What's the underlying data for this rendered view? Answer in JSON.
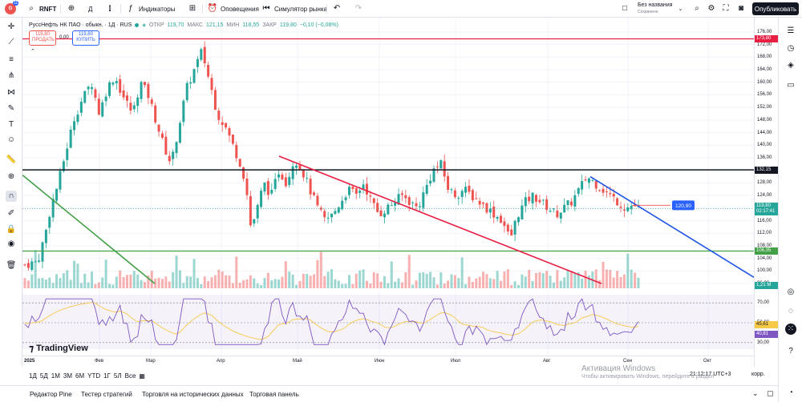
{
  "topbar": {
    "symbol": "RNFT",
    "interval": "Д",
    "indicators_label": "Индикаторы",
    "alerts_label": "Оповещения",
    "replay_label": "Симулятор рынка",
    "layout_name": "Без названия",
    "layout_status": "Сохранено",
    "publish_label": "Опубликовать",
    "avatar_badge": "11"
  },
  "legend": {
    "title": "РуссНефть НК ПАО · обыкн. · 1Д · RUS",
    "o_label": "ОТКР",
    "o": "119,70",
    "h_label": "МАКС",
    "h": "121,15",
    "l_label": "МИН",
    "l": "118,55",
    "c_label": "ЗАКР",
    "c": "119,80",
    "change": "−0,10 (−0,08%)"
  },
  "trade": {
    "sell_price": "119,80",
    "sell_label": "ПРОДАТЬ",
    "spread": "0,00",
    "buy_price": "119,80",
    "buy_label": "КУПИТЬ"
  },
  "price_axis": [
    "176,00",
    "172,00",
    "168,00",
    "164,00",
    "160,00",
    "156,00",
    "152,00",
    "148,00",
    "144,00",
    "140,00",
    "136,00",
    "132,00",
    "128,00",
    "124,00",
    "120,00",
    "116,00",
    "112,00",
    "108,00",
    "104,00",
    "100,00",
    "96,00"
  ],
  "rsi_axis": [
    "70,00",
    "50,00",
    "30,00"
  ],
  "price_tags": {
    "top_line": "173,80",
    "black_line": "132,15",
    "current": "119,80",
    "countdown": "02:17:41",
    "green_line": "106,35",
    "volume": "1,21 M",
    "rsi_ma": "45,61",
    "rsi": "40,81",
    "target": "120,90"
  },
  "time_axis": [
    "2025",
    "Фев",
    "Мар",
    "Апр",
    "Май",
    "Июн",
    "Июл",
    "Авг",
    "Сен",
    "Окт"
  ],
  "ranges": [
    "1Д",
    "5Д",
    "1М",
    "3М",
    "6М",
    "YTD",
    "1Г",
    "5Л",
    "Все"
  ],
  "clock": "21:12:17 UTC+3",
  "adj": "корр.",
  "watermark": "Активация Windows",
  "watermark_sub": "Чтобы активировать Windows, перейдите в раздел",
  "tv_logo": "TradingView",
  "bottom_tabs": [
    "Редактор Pine",
    "Тестер стратегий",
    "Торговля на исторических данных",
    "Торговая панель"
  ],
  "colors": {
    "up": "#26a69a",
    "down": "#ef5350",
    "red_line": "#e91e43",
    "blue_line": "#1e53e5",
    "green_line": "#43a047"
  },
  "chart_data": {
    "type": "candlestick",
    "title": "РуссНефть НК ПАО · обыкн. · 1Д · RUS",
    "ylim": [
      94,
      178
    ],
    "x": [
      "2025",
      "Фев",
      "Мар",
      "Апр",
      "Май",
      "Июн",
      "Июл",
      "Авг",
      "Сен",
      "Окт"
    ],
    "close_path": [
      [
        0.0,
        102
      ],
      [
        1.0,
        103
      ],
      [
        1.6,
        112
      ],
      [
        2.0,
        120
      ],
      [
        2.6,
        128
      ],
      [
        3.2,
        138
      ],
      [
        3.8,
        148
      ],
      [
        4.4,
        154
      ],
      [
        5.2,
        160
      ],
      [
        5.8,
        150
      ],
      [
        6.4,
        158
      ],
      [
        7.0,
        162
      ],
      [
        7.6,
        156
      ],
      [
        8.4,
        150
      ],
      [
        9.0,
        160
      ],
      [
        9.6,
        156
      ],
      [
        10.2,
        148
      ],
      [
        10.8,
        140
      ],
      [
        11.4,
        134
      ],
      [
        12.0,
        146
      ],
      [
        12.6,
        158
      ],
      [
        13.2,
        164
      ],
      [
        13.8,
        170
      ],
      [
        14.4,
        160
      ],
      [
        15.0,
        150
      ],
      [
        15.6,
        146
      ],
      [
        16.2,
        140
      ],
      [
        16.8,
        134
      ],
      [
        17.2,
        128
      ],
      [
        17.6,
        114
      ],
      [
        18.0,
        118
      ],
      [
        18.6,
        128
      ],
      [
        19.2,
        124
      ],
      [
        19.8,
        132
      ],
      [
        20.4,
        128
      ],
      [
        21.0,
        136
      ],
      [
        21.6,
        132
      ],
      [
        22.2,
        126
      ],
      [
        22.8,
        120
      ],
      [
        23.4,
        116
      ],
      [
        24.0,
        118
      ],
      [
        24.6,
        122
      ],
      [
        25.2,
        126
      ],
      [
        25.8,
        124
      ],
      [
        26.4,
        128
      ],
      [
        27.0,
        122
      ],
      [
        27.6,
        118
      ],
      [
        28.2,
        120
      ],
      [
        28.8,
        122
      ],
      [
        29.4,
        124
      ],
      [
        30.0,
        122
      ],
      [
        30.6,
        120
      ],
      [
        31.2,
        126
      ],
      [
        31.8,
        132
      ],
      [
        32.4,
        134
      ],
      [
        33.0,
        126
      ],
      [
        33.6,
        124
      ],
      [
        34.2,
        126
      ],
      [
        34.8,
        124
      ],
      [
        35.4,
        122
      ],
      [
        36.0,
        120
      ],
      [
        36.6,
        118
      ],
      [
        37.2,
        116
      ],
      [
        37.8,
        110
      ],
      [
        38.4,
        118
      ],
      [
        39.0,
        122
      ],
      [
        39.6,
        124
      ],
      [
        40.2,
        122
      ],
      [
        40.8,
        120
      ],
      [
        41.4,
        118
      ],
      [
        42.0,
        120
      ],
      [
        42.6,
        122
      ],
      [
        43.2,
        126
      ],
      [
        43.8,
        130
      ],
      [
        44.4,
        128
      ],
      [
        45.0,
        126
      ],
      [
        45.6,
        124
      ],
      [
        46.2,
        122
      ],
      [
        46.8,
        120
      ],
      [
        47.4,
        121
      ],
      [
        47.8,
        119.8
      ]
    ],
    "levels": {
      "resistance": 132.15,
      "support": 106.35,
      "top": 173.8,
      "target": 120.9
    },
    "rsi": {
      "ylim": [
        25,
        75
      ],
      "levels": [
        70,
        50,
        30
      ],
      "last": 40.81,
      "ma_last": 45.61
    }
  }
}
